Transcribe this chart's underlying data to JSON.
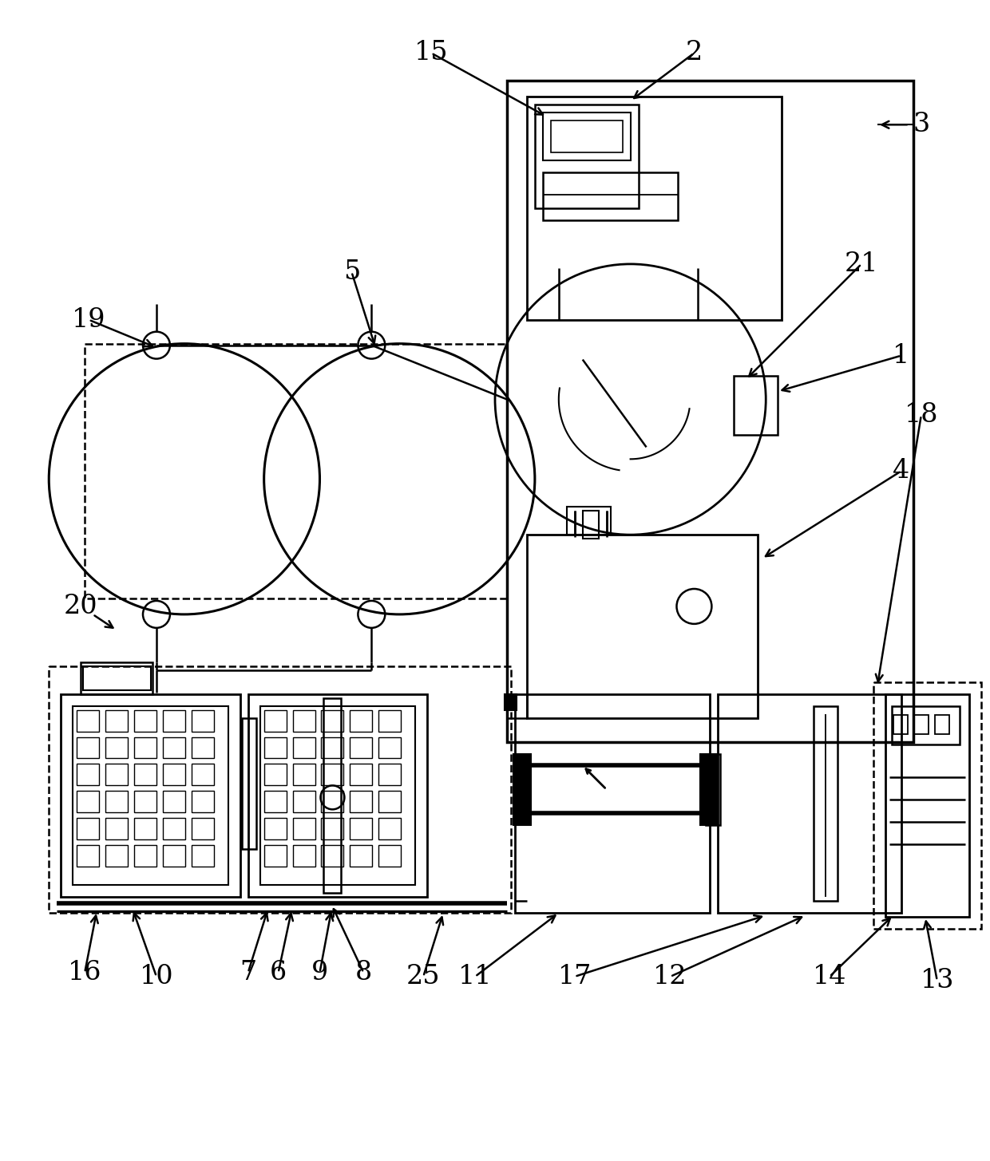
{
  "bg_color": "#ffffff",
  "lc": "#000000",
  "lw": 1.8,
  "tlw": 4.0,
  "fig_width": 12.4,
  "fig_height": 14.55
}
